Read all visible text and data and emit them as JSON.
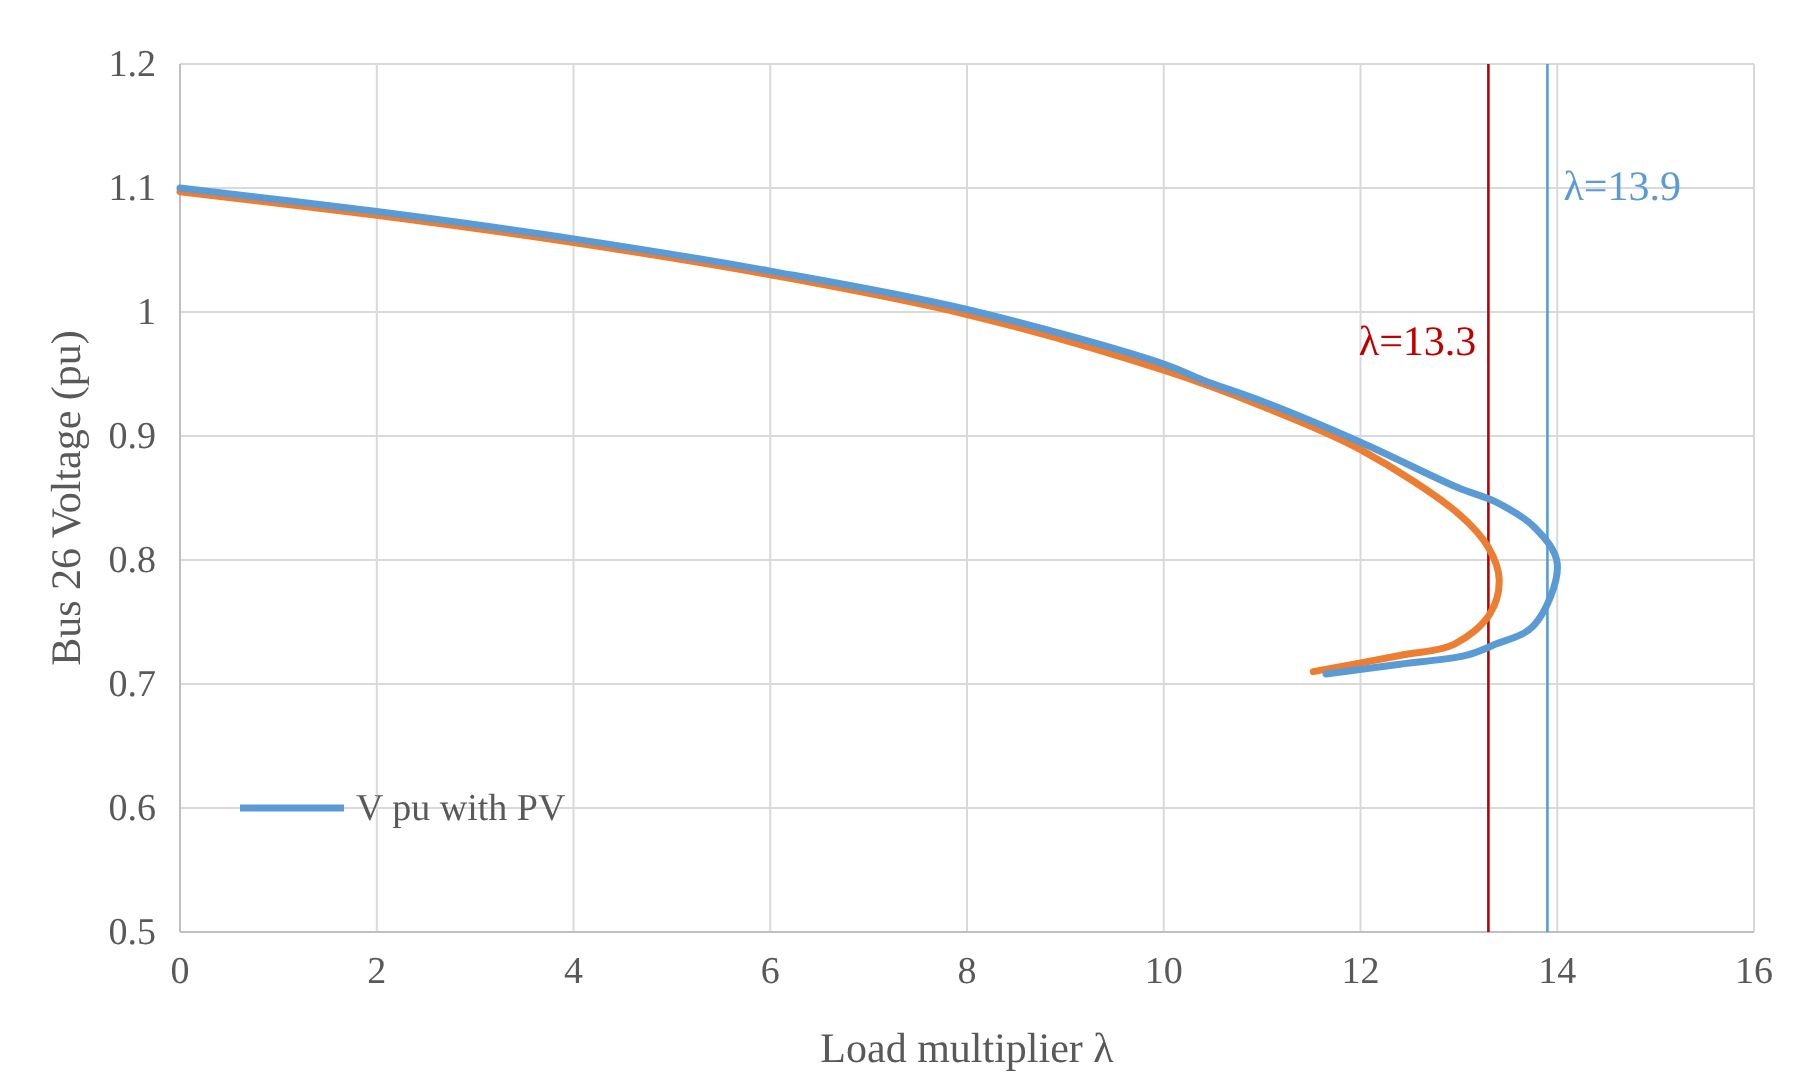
{
  "chart_data": {
    "type": "line",
    "xlabel": "Load multiplier λ",
    "ylabel": "Bus 26 Voltage (pu)",
    "xlim": [
      0,
      16
    ],
    "xticks": [
      0,
      2,
      4,
      6,
      8,
      10,
      12,
      14,
      16
    ],
    "ylim": [
      0.5,
      1.2
    ],
    "yticks": [
      0.5,
      0.6,
      0.7,
      0.8,
      0.9,
      1,
      1.1,
      1.2
    ],
    "grid": true,
    "legend": "bottom left",
    "line_style": "solid",
    "marker": "none",
    "series": [
      {
        "name": "V pu with PV",
        "color": "#5b9bd5",
        "x": [
          0,
          2,
          4,
          6,
          8,
          10,
          10.4,
          11,
          12,
          13,
          13.37,
          13.76,
          14.0,
          13.76,
          13.37,
          13.07,
          12.4,
          11.65
        ],
        "values": [
          1.1,
          1.081,
          1.059,
          1.033,
          1.002,
          0.958,
          0.945,
          0.928,
          0.895,
          0.858,
          0.847,
          0.827,
          0.797,
          0.747,
          0.732,
          0.723,
          0.716,
          0.708
        ]
      },
      {
        "color": "#ed7d31",
        "x": [
          0,
          2,
          4,
          6,
          8,
          10,
          11,
          12,
          13,
          13.3,
          13.41,
          13.31,
          12.95,
          12.4,
          11.52
        ],
        "values": [
          1.097,
          1.078,
          1.056,
          1.03,
          0.998,
          0.953,
          0.924,
          0.889,
          0.837,
          0.81,
          0.784,
          0.756,
          0.732,
          0.723,
          0.71
        ]
      }
    ],
    "ref_lines": [
      {
        "axis": "x",
        "value": 13.3,
        "label": "λ=13.3",
        "color": "#c00000"
      },
      {
        "axis": "x",
        "value": 13.9,
        "label": "λ=13.9",
        "color": "#5b9bd5"
      }
    ]
  }
}
